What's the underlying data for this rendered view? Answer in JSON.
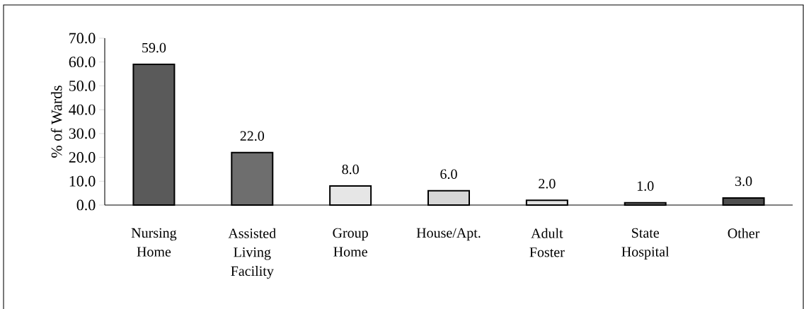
{
  "chart_data": {
    "type": "bar",
    "ylabel": "% of Wards",
    "categories": [
      "Nursing Home",
      "Assisted Living Facility",
      "Group Home",
      "House/Apt.",
      "Adult Foster",
      "State Hospital",
      "Other"
    ],
    "values": [
      59,
      22,
      8,
      6,
      2,
      1,
      3
    ],
    "value_labels": [
      "59.0",
      "22.0",
      "8.0",
      "6.0",
      "2.0",
      "1.0",
      "3.0"
    ],
    "colors": [
      "#5a5a5a",
      "#6e6e6e",
      "#e6e6e6",
      "#d6d6d6",
      "#e2e2e2",
      "#7a7a7a",
      "#4e4e4e"
    ],
    "ylim": [
      0,
      70
    ],
    "yticks": [
      {
        "value": 0,
        "label": "0.0"
      },
      {
        "value": 10,
        "label": "10.0"
      },
      {
        "value": 20,
        "label": "20.0"
      },
      {
        "value": 30,
        "label": "30.0"
      },
      {
        "value": 40,
        "label": "40.0"
      },
      {
        "value": 50,
        "label": "50.0"
      },
      {
        "value": 60,
        "label": "60.0"
      },
      {
        "value": 70,
        "label": "70.0"
      }
    ],
    "grid": false
  }
}
